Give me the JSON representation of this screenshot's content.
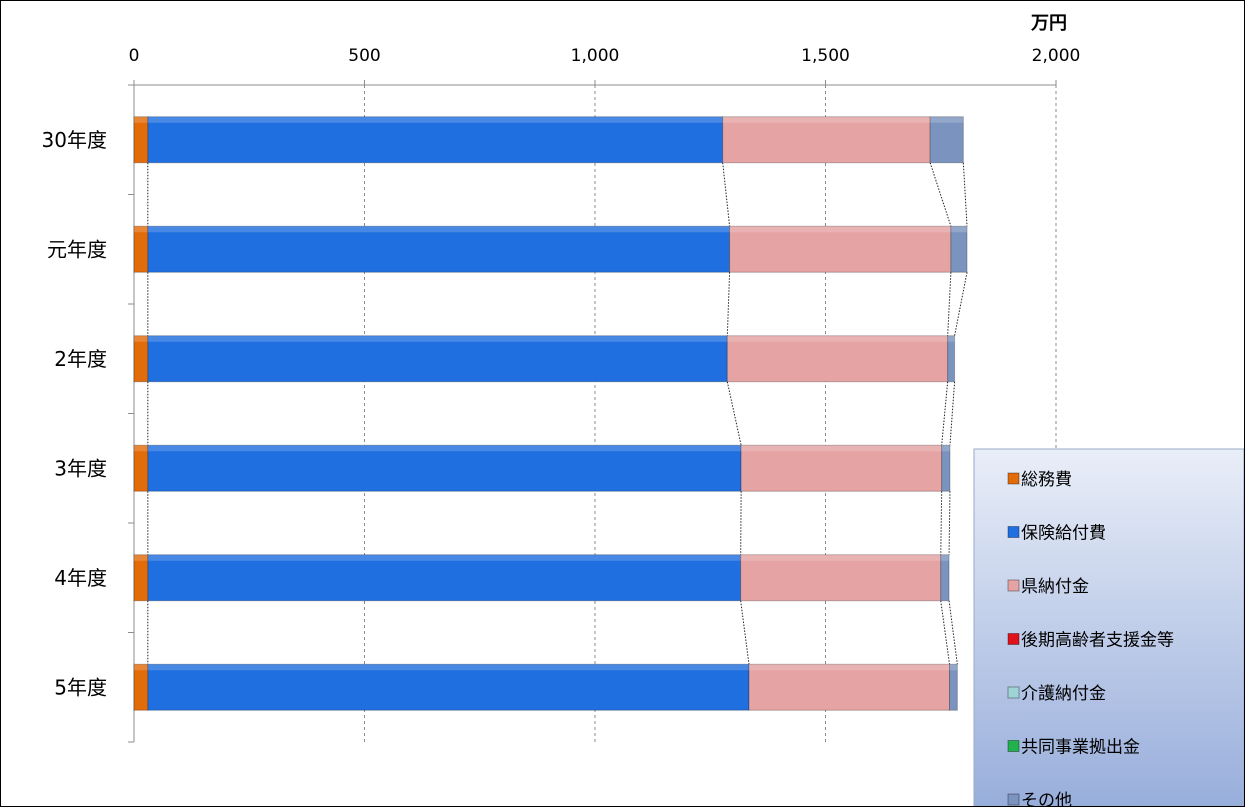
{
  "chart_data": {
    "type": "bar",
    "orientation": "horizontal",
    "stacked": true,
    "unit": "万円",
    "xlim": [
      0,
      2000
    ],
    "x_ticks": [
      "0",
      "500",
      "1,000",
      "1,500",
      "2,000"
    ],
    "x_tick_values": [
      0,
      500,
      1000,
      1500,
      2000
    ],
    "grid": true,
    "legend_position": "bottom-right",
    "categories": [
      "30年度",
      "元年度",
      "2年度",
      "3年度",
      "4年度",
      "5年度"
    ],
    "series": [
      {
        "name": "総務費",
        "color": "#e36c0a",
        "values": [
          30,
          30,
          30,
          30,
          30,
          30
        ]
      },
      {
        "name": "保険給付費",
        "color": "#1f6fe0",
        "values": [
          1247,
          1262,
          1257,
          1287,
          1286,
          1304
        ]
      },
      {
        "name": "県納付金",
        "color": "#e6a3a3",
        "values": [
          450,
          480,
          478,
          435,
          434,
          435
        ]
      },
      {
        "name": "後期高齢者支援金等",
        "color": "#e0121b",
        "values": [
          0,
          0,
          0,
          0,
          0,
          0
        ]
      },
      {
        "name": "介護納付金",
        "color": "#9fd4d6",
        "values": [
          0,
          0,
          0,
          0,
          0,
          0
        ]
      },
      {
        "name": "共同事業拠出金",
        "color": "#22b14c",
        "values": [
          0,
          0,
          0,
          0,
          0,
          0
        ]
      },
      {
        "name": "その他",
        "color": "#7b94bf",
        "values": [
          72,
          35,
          15,
          18,
          18,
          17
        ]
      }
    ]
  }
}
